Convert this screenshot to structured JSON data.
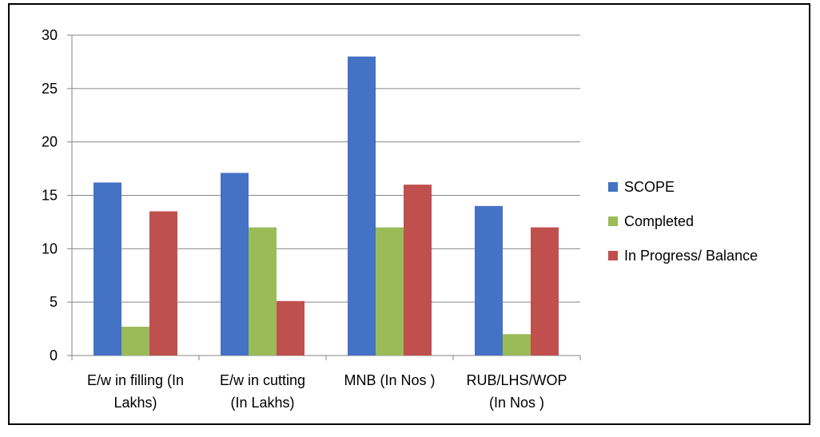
{
  "chart_data": {
    "type": "bar",
    "title": "",
    "xlabel": "",
    "ylabel": "",
    "ylim": [
      0,
      30
    ],
    "yticks": [
      0,
      5,
      10,
      15,
      20,
      25,
      30
    ],
    "grid": true,
    "legend_position": "right",
    "categories": [
      [
        "E/w in filling (In",
        "Lakhs)"
      ],
      [
        "E/w in cutting",
        "(In Lakhs)"
      ],
      [
        "MNB (In Nos )"
      ],
      [
        "RUB/LHS/WOP",
        "(In Nos )"
      ]
    ],
    "series": [
      {
        "name": "SCOPE",
        "color": "#4472C4",
        "values": [
          16.2,
          17.1,
          28.0,
          14.0
        ]
      },
      {
        "name": "Completed",
        "color": "#9BBB59",
        "values": [
          2.7,
          12.0,
          12.0,
          2.0
        ]
      },
      {
        "name": "In Progress/ Balance",
        "color": "#C0504D",
        "values": [
          13.5,
          5.1,
          16.0,
          12.0
        ]
      }
    ]
  }
}
